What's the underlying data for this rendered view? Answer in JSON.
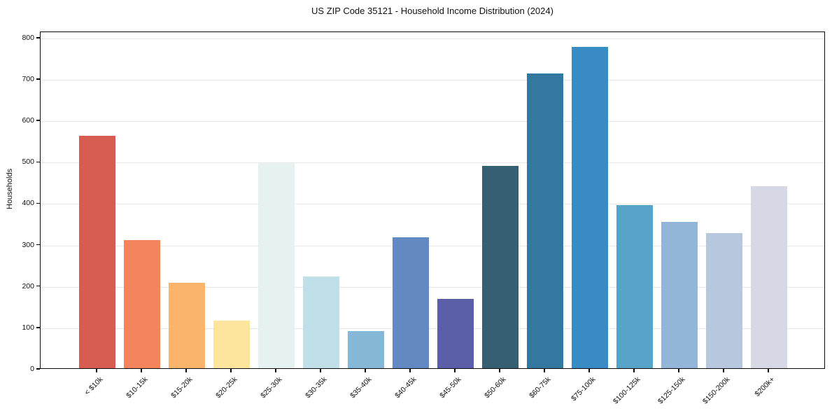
{
  "chart_data": {
    "type": "bar",
    "title": "US ZIP Code 35121 - Household Income Distribution (2024)",
    "xlabel": "",
    "ylabel": "Households",
    "categories": [
      "< $10k",
      "$10-15k",
      "$15-20k",
      "$20-25k",
      "$25-30k",
      "$30-35k",
      "$35-40k",
      "$40-45k",
      "$45-50k",
      "$50-60k",
      "$60-75k",
      "$75-100k",
      "$100-125k",
      "$125-150k",
      "$150-200k",
      "$200k+"
    ],
    "values": [
      562,
      310,
      207,
      115,
      496,
      221,
      90,
      316,
      168,
      488,
      712,
      776,
      394,
      353,
      327,
      439
    ],
    "bar_colors": [
      "#d75c52",
      "#f4845e",
      "#fbb46c",
      "#fde59e",
      "#e6f2f2",
      "#bfe0e8",
      "#87b7d7",
      "#6289c2",
      "#5b5fa7",
      "#375f73",
      "#35789f",
      "#388bc3",
      "#58a4c9",
      "#92b5d8",
      "#b6c7de",
      "#d6d8e6"
    ],
    "ylim": [
      0,
      815
    ],
    "yticks": [
      0,
      100,
      200,
      300,
      400,
      500,
      600,
      700,
      800
    ],
    "grid": "horizontal",
    "legend": "none",
    "background_color": "#ffffff",
    "axis_color": "#0a0a0a",
    "gridline_color": "#e8e8e8"
  }
}
